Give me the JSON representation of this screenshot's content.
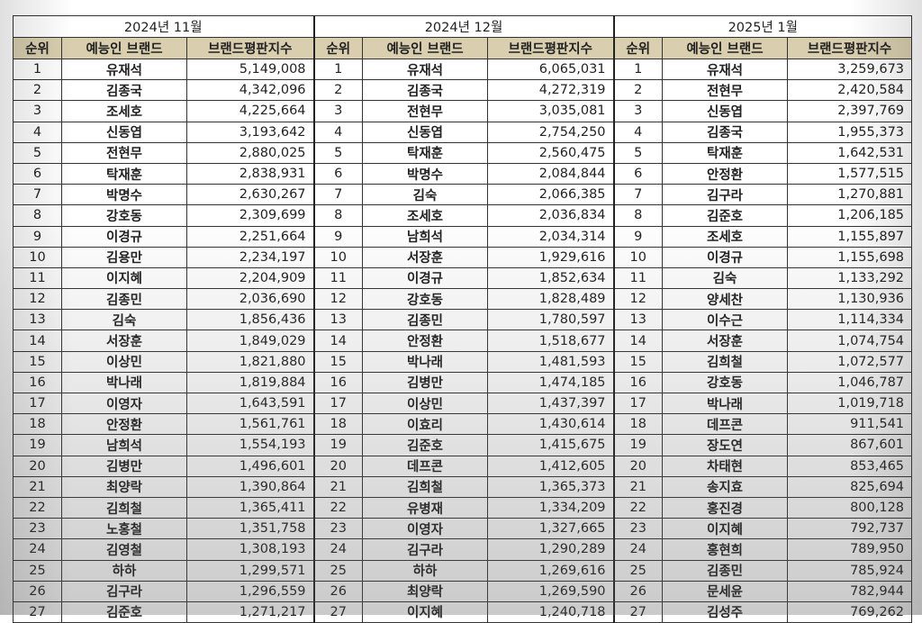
{
  "months": [
    "2024년 11월",
    "2024년 12월",
    "2025년 1월"
  ],
  "columns": {
    "rank": "순위",
    "name": "예능인 브랜드",
    "score": "브랜드평판지수"
  },
  "colors": {
    "header_bg": "#d9cfaf",
    "border": "#333333"
  },
  "tables": [
    {
      "rows": [
        [
          "1",
          "유재석",
          "5,149,008"
        ],
        [
          "2",
          "김종국",
          "4,342,096"
        ],
        [
          "3",
          "조세호",
          "4,225,664"
        ],
        [
          "4",
          "신동엽",
          "3,193,642"
        ],
        [
          "5",
          "전현무",
          "2,880,025"
        ],
        [
          "6",
          "탁재훈",
          "2,838,931"
        ],
        [
          "7",
          "박명수",
          "2,630,267"
        ],
        [
          "8",
          "강호동",
          "2,309,699"
        ],
        [
          "9",
          "이경규",
          "2,251,664"
        ],
        [
          "10",
          "김용만",
          "2,234,197"
        ],
        [
          "11",
          "이지혜",
          "2,204,909"
        ],
        [
          "12",
          "김종민",
          "2,036,690"
        ],
        [
          "13",
          "김숙",
          "1,856,436"
        ],
        [
          "14",
          "서장훈",
          "1,849,029"
        ],
        [
          "15",
          "이상민",
          "1,821,880"
        ],
        [
          "16",
          "박나래",
          "1,819,884"
        ],
        [
          "17",
          "이영자",
          "1,643,591"
        ],
        [
          "18",
          "안정환",
          "1,561,761"
        ],
        [
          "19",
          "남희석",
          "1,554,193"
        ],
        [
          "20",
          "김병만",
          "1,496,601"
        ],
        [
          "21",
          "최양락",
          "1,390,864"
        ],
        [
          "22",
          "김희철",
          "1,365,411"
        ],
        [
          "23",
          "노홍철",
          "1,351,758"
        ],
        [
          "24",
          "김영철",
          "1,308,193"
        ],
        [
          "25",
          "하하",
          "1,299,571"
        ],
        [
          "26",
          "김구라",
          "1,296,559"
        ],
        [
          "27",
          "김준호",
          "1,271,217"
        ]
      ]
    },
    {
      "rows": [
        [
          "1",
          "유재석",
          "6,065,031"
        ],
        [
          "2",
          "김종국",
          "4,272,319"
        ],
        [
          "3",
          "전현무",
          "3,035,081"
        ],
        [
          "4",
          "신동엽",
          "2,754,250"
        ],
        [
          "5",
          "탁재훈",
          "2,560,475"
        ],
        [
          "6",
          "박명수",
          "2,084,844"
        ],
        [
          "7",
          "김숙",
          "2,066,385"
        ],
        [
          "8",
          "조세호",
          "2,036,834"
        ],
        [
          "9",
          "남희석",
          "2,034,314"
        ],
        [
          "10",
          "서장훈",
          "1,929,616"
        ],
        [
          "11",
          "이경규",
          "1,852,634"
        ],
        [
          "12",
          "강호동",
          "1,828,489"
        ],
        [
          "13",
          "김종민",
          "1,780,597"
        ],
        [
          "14",
          "안정환",
          "1,518,677"
        ],
        [
          "15",
          "박나래",
          "1,481,593"
        ],
        [
          "16",
          "김병만",
          "1,474,185"
        ],
        [
          "17",
          "이상민",
          "1,437,397"
        ],
        [
          "18",
          "이효리",
          "1,430,614"
        ],
        [
          "19",
          "김준호",
          "1,415,675"
        ],
        [
          "20",
          "데프콘",
          "1,412,605"
        ],
        [
          "21",
          "김희철",
          "1,365,373"
        ],
        [
          "22",
          "유병재",
          "1,334,209"
        ],
        [
          "23",
          "이영자",
          "1,327,665"
        ],
        [
          "24",
          "김구라",
          "1,290,289"
        ],
        [
          "25",
          "하하",
          "1,269,616"
        ],
        [
          "26",
          "최양락",
          "1,269,590"
        ],
        [
          "27",
          "이지혜",
          "1,240,718"
        ]
      ]
    },
    {
      "rows": [
        [
          "1",
          "유재석",
          "3,259,673"
        ],
        [
          "2",
          "전현무",
          "2,420,584"
        ],
        [
          "3",
          "신동엽",
          "2,397,769"
        ],
        [
          "4",
          "김종국",
          "1,955,373"
        ],
        [
          "5",
          "탁재훈",
          "1,642,531"
        ],
        [
          "6",
          "안정환",
          "1,577,515"
        ],
        [
          "7",
          "김구라",
          "1,270,881"
        ],
        [
          "8",
          "김준호",
          "1,206,185"
        ],
        [
          "9",
          "조세호",
          "1,155,897"
        ],
        [
          "10",
          "이경규",
          "1,155,698"
        ],
        [
          "11",
          "김숙",
          "1,133,292"
        ],
        [
          "12",
          "양세찬",
          "1,130,936"
        ],
        [
          "13",
          "이수근",
          "1,114,334"
        ],
        [
          "14",
          "서장훈",
          "1,074,754"
        ],
        [
          "15",
          "김희철",
          "1,072,577"
        ],
        [
          "16",
          "강호동",
          "1,046,787"
        ],
        [
          "17",
          "박나래",
          "1,019,718"
        ],
        [
          "18",
          "데프콘",
          "911,541"
        ],
        [
          "19",
          "장도연",
          "867,601"
        ],
        [
          "20",
          "차태현",
          "853,465"
        ],
        [
          "21",
          "송지효",
          "825,694"
        ],
        [
          "22",
          "홍진경",
          "800,128"
        ],
        [
          "23",
          "이지혜",
          "792,737"
        ],
        [
          "24",
          "홍현희",
          "789,950"
        ],
        [
          "25",
          "김종민",
          "785,924"
        ],
        [
          "26",
          "문세윤",
          "782,944"
        ],
        [
          "27",
          "김성주",
          "769,262"
        ]
      ]
    }
  ]
}
